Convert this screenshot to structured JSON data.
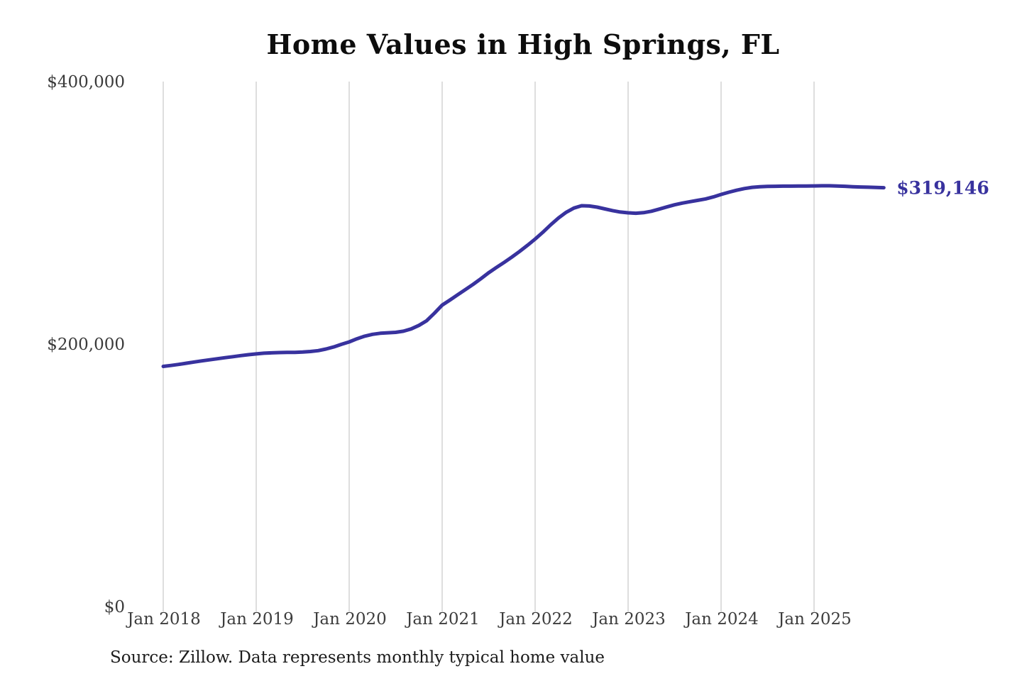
{
  "header": {
    "title": "Home Values in High Springs, FL"
  },
  "footer": {
    "source_note": "Source: Zillow. Data represents monthly typical home value"
  },
  "chart_data": {
    "type": "line",
    "title": "Home Values in High Springs, FL",
    "xlabel": "",
    "ylabel": "",
    "ylim": [
      0,
      400000
    ],
    "grid": "vertical-only",
    "grid_color": "#cccccc",
    "axis_text_color": "#3a3a3a",
    "background_color": "#ffffff",
    "legend_position": "none",
    "end_label": "$319,146",
    "end_value": 319146,
    "y_ticks": [
      {
        "value": 0,
        "label": "$0"
      },
      {
        "value": 200000,
        "label": "$200,000"
      },
      {
        "value": 400000,
        "label": "$400,000"
      }
    ],
    "x_tick_labels": [
      "Jan 2018",
      "Jan 2019",
      "Jan 2020",
      "Jan 2021",
      "Jan 2022",
      "Jan 2023",
      "Jan 2024",
      "Jan 2025"
    ],
    "series": [
      {
        "name": "Monthly typical home value",
        "color": "#38329e",
        "x": [
          "Jan 2018",
          "Feb 2018",
          "Mar 2018",
          "Apr 2018",
          "May 2018",
          "Jun 2018",
          "Jul 2018",
          "Aug 2018",
          "Sep 2018",
          "Oct 2018",
          "Nov 2018",
          "Dec 2018",
          "Jan 2019",
          "Feb 2019",
          "Mar 2019",
          "Apr 2019",
          "May 2019",
          "Jun 2019",
          "Jul 2019",
          "Aug 2019",
          "Sep 2019",
          "Oct 2019",
          "Nov 2019",
          "Dec 2019",
          "Jan 2020",
          "Feb 2020",
          "Mar 2020",
          "Apr 2020",
          "May 2020",
          "Jun 2020",
          "Jul 2020",
          "Aug 2020",
          "Sep 2020",
          "Oct 2020",
          "Nov 2020",
          "Dec 2020",
          "Jan 2021",
          "Feb 2021",
          "Mar 2021",
          "Apr 2021",
          "May 2021",
          "Jun 2021",
          "Jul 2021",
          "Aug 2021",
          "Sep 2021",
          "Oct 2021",
          "Nov 2021",
          "Dec 2021",
          "Jan 2022",
          "Feb 2022",
          "Mar 2022",
          "Apr 2022",
          "May 2022",
          "Jun 2022",
          "Jul 2022",
          "Aug 2022",
          "Sep 2022",
          "Oct 2022",
          "Nov 2022",
          "Dec 2022",
          "Jan 2023",
          "Feb 2023",
          "Mar 2023",
          "Apr 2023",
          "May 2023",
          "Jun 2023",
          "Jul 2023",
          "Aug 2023",
          "Sep 2023",
          "Oct 2023",
          "Nov 2023",
          "Dec 2023",
          "Jan 2024",
          "Feb 2024",
          "Mar 2024",
          "Apr 2024",
          "May 2024",
          "Jun 2024",
          "Jul 2024",
          "Aug 2024",
          "Sep 2024",
          "Oct 2024",
          "Nov 2024",
          "Dec 2024",
          "Jan 2025",
          "Feb 2025",
          "Mar 2025",
          "Apr 2025",
          "May 2025",
          "Jun 2025",
          "Jul 2025",
          "Aug 2025",
          "Sep 2025",
          "Oct 2025"
        ],
        "values": [
          183000,
          183700,
          184500,
          185400,
          186300,
          187200,
          188000,
          188800,
          189600,
          190400,
          191200,
          191900,
          192500,
          193000,
          193300,
          193500,
          193600,
          193700,
          193900,
          194300,
          195000,
          196200,
          197800,
          199800,
          201600,
          204000,
          206000,
          207400,
          208200,
          208600,
          208900,
          209800,
          211500,
          214200,
          217800,
          223500,
          229700,
          233500,
          237500,
          241500,
          245500,
          249800,
          254300,
          258300,
          262200,
          266300,
          270600,
          275200,
          280000,
          285200,
          290800,
          296000,
          300400,
          303600,
          305400,
          305200,
          304300,
          303000,
          301700,
          300600,
          300000,
          299700,
          300100,
          301200,
          302800,
          304500,
          306100,
          307400,
          308500,
          309500,
          310600,
          312100,
          314000,
          315700,
          317200,
          318500,
          319400,
          319900,
          320100,
          320200,
          320300,
          320300,
          320400,
          320400,
          320500,
          320600,
          320600,
          320400,
          320200,
          319900,
          319700,
          319500,
          319300,
          319146
        ]
      }
    ]
  }
}
